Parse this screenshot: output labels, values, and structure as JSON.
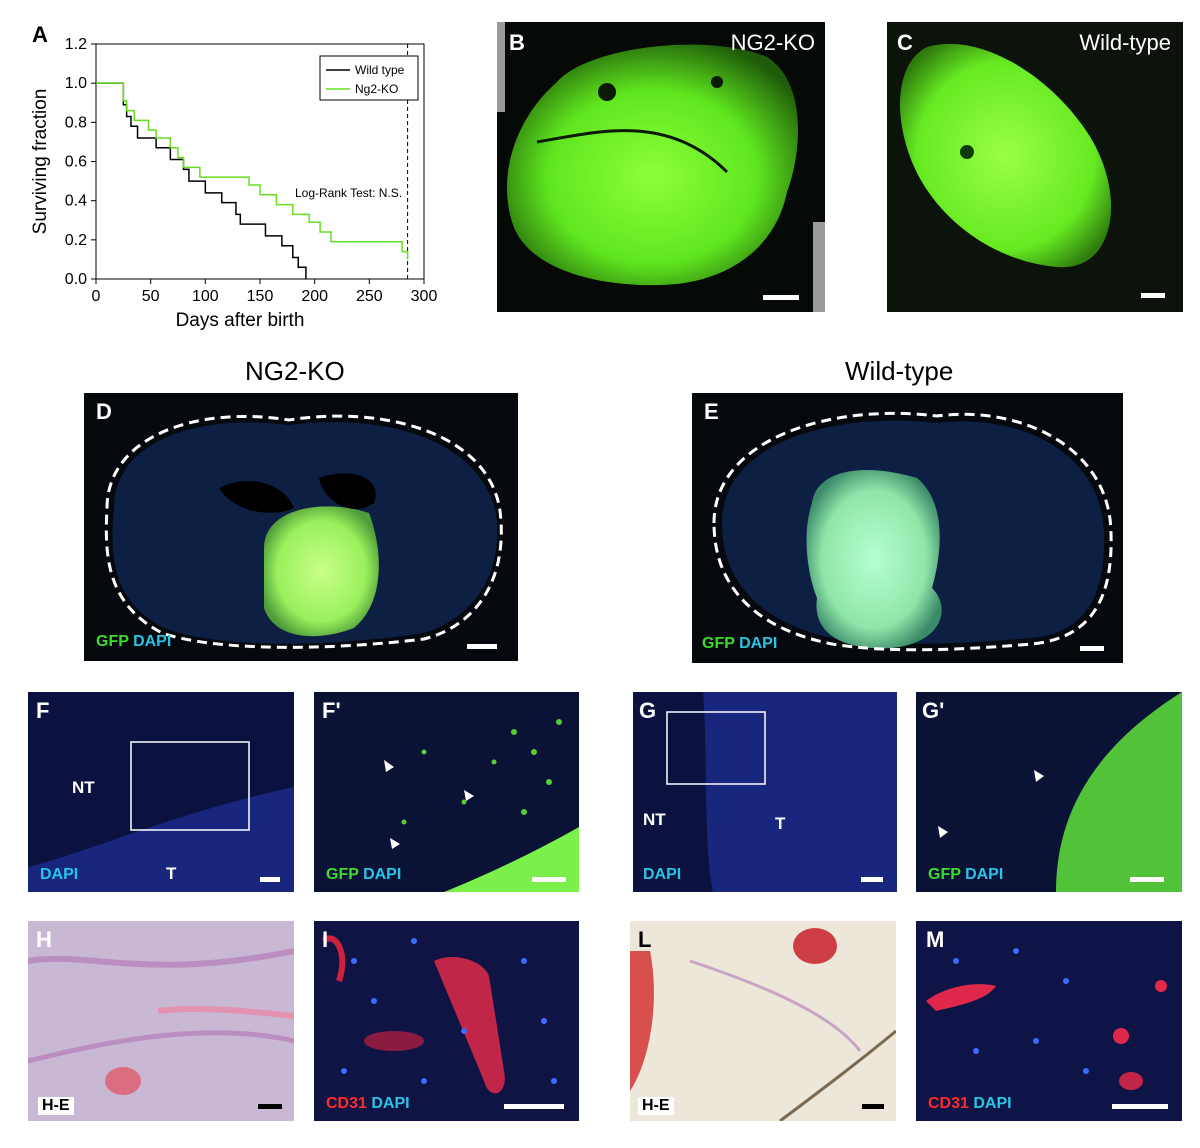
{
  "panels": {
    "A": "A",
    "B": "B",
    "C": "C",
    "D": "D",
    "E": "E",
    "F": "F",
    "F_prime": "F'",
    "G": "G",
    "G_prime": "G'",
    "H": "H",
    "I": "I",
    "L": "L",
    "M": "M"
  },
  "headings": {
    "left": "NG2-KO",
    "right": "Wild-type"
  },
  "corner_titles": {
    "B": "NG2-KO",
    "C": "Wild-type"
  },
  "stains": {
    "gfp": "GFP",
    "dapi": "DAPI",
    "he": "H-E",
    "cd31": "CD31"
  },
  "tissue_labels": {
    "nt": "NT",
    "t": "T"
  },
  "colors": {
    "gfp": "#3ddc2e",
    "dapi": "#29c5e6",
    "cd31": "#ff2a2a"
  },
  "chart_data": {
    "type": "line",
    "subtype": "kaplan-meier step",
    "xlabel": "Days after birth",
    "ylabel": "Surviving fraction",
    "xlim": [
      0,
      300
    ],
    "ylim": [
      0.0,
      1.2
    ],
    "xticks": [
      "0",
      "50",
      "100",
      "150",
      "200",
      "250",
      "300"
    ],
    "yticks": [
      "0.0",
      "0.2",
      "0.4",
      "0.6",
      "0.8",
      "1.0",
      "1.2"
    ],
    "legend_position": "top-right",
    "annotation": "Log-Rank Test: N.S.",
    "reference_line_x": 285,
    "series": [
      {
        "name": "Wild type",
        "color": "#000000",
        "x": [
          0,
          25,
          28,
          32,
          38,
          45,
          50,
          55,
          68,
          80,
          85,
          100,
          115,
          128,
          132,
          138,
          155,
          170,
          180,
          185,
          192
        ],
        "y": [
          1.0,
          0.89,
          0.83,
          0.78,
          0.72,
          0.72,
          0.72,
          0.67,
          0.61,
          0.56,
          0.5,
          0.44,
          0.39,
          0.33,
          0.28,
          0.28,
          0.22,
          0.17,
          0.11,
          0.06,
          0.0
        ]
      },
      {
        "name": "Ng2-KO",
        "color": "#66dd22",
        "x": [
          0,
          25,
          28,
          35,
          48,
          55,
          68,
          75,
          80,
          95,
          140,
          150,
          165,
          180,
          195,
          205,
          215,
          230,
          280,
          285
        ],
        "y": [
          1.0,
          0.91,
          0.86,
          0.81,
          0.76,
          0.72,
          0.67,
          0.62,
          0.57,
          0.52,
          0.48,
          0.43,
          0.38,
          0.33,
          0.29,
          0.24,
          0.19,
          0.19,
          0.14,
          0.1
        ]
      }
    ]
  }
}
